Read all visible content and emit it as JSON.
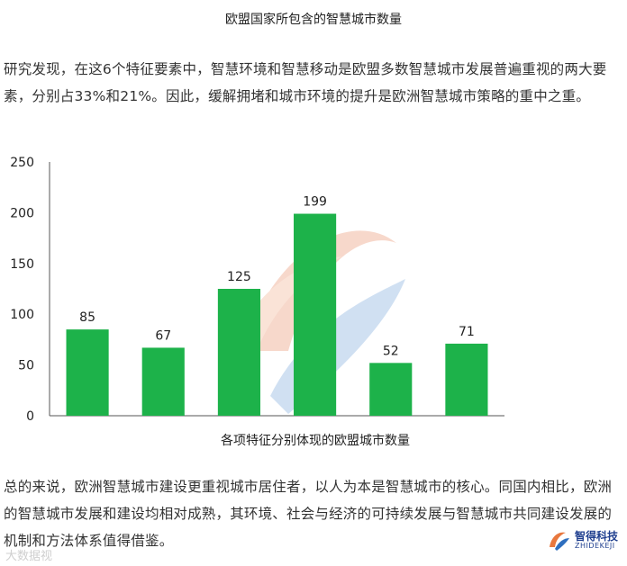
{
  "caption_top": "欧盟国家所包含的智慧城市数量",
  "paragraph_1": "研究发现，在这6个特征要素中，智慧环境和智慧移动是欧盟多数智慧城市发展普遍重视的两大要素，分别占33%和21%。因此，缓解拥堵和城市环境的提升是欧洲智慧城市策略的重中之重。",
  "paragraph_2": "总的来说，欧洲智慧城市建设更重视城市居住者，以人为本是智慧城市的核心。同国内相比，欧洲的智慧城市发展和建设均相对成熟，其环境、社会与经济的可持续发展与智慧城市共同建设发展的机制和方法体系值得借鉴。",
  "chart_data": {
    "type": "bar",
    "title": "各项特征分别体现的欧盟城市数量",
    "xlabel": "",
    "ylabel": "",
    "values": [
      85,
      67,
      125,
      199,
      52,
      71
    ],
    "data_labels": [
      "85",
      "67",
      "125",
      "199",
      "52",
      "71"
    ],
    "ylim": [
      0,
      250
    ],
    "yticks": [
      "0",
      "50",
      "100",
      "150",
      "200",
      "250"
    ],
    "grid": false,
    "bar_color": "#1db24a"
  },
  "watermark": {
    "brand_name": "智得科技",
    "brand_sub": "ZHIDEKEJI",
    "left_text": "大数据视"
  }
}
